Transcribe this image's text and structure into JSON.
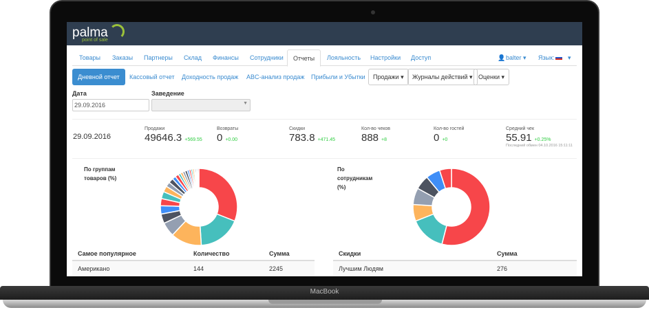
{
  "device_label": "MacBook",
  "app": {
    "logo": "palma",
    "logo_sub": "point of sale"
  },
  "nav": {
    "tabs": [
      "Товары",
      "Заказы",
      "Партнеры",
      "Склад",
      "Финансы",
      "Сотрудники",
      "Отчеты",
      "Лояльность",
      "Настройки",
      "Доступ"
    ],
    "active": "Отчеты",
    "user": "balter ▾",
    "language": "Язык:"
  },
  "subnav": {
    "items": [
      "Дневной отчет",
      "Кассовый отчет",
      "Доходность продаж",
      "ABC-анализ продаж",
      "Прибыли и Убытки"
    ],
    "active": "Дневной отчет",
    "dropdowns": [
      "Продажи ▾",
      "Журналы действий ▾",
      "Оценки ▾"
    ]
  },
  "filters": {
    "date_label": "Дата",
    "date_value": "29.09.2016",
    "venue_label": "Заведение",
    "venue_value": ""
  },
  "summary": {
    "date": "29.09.2016",
    "stats": [
      {
        "label": "Продажи",
        "value": "49646.3",
        "delta": "+569.55"
      },
      {
        "label": "Возвраты",
        "value": "0",
        "delta": "+0.00"
      },
      {
        "label": "Скидки",
        "value": "783.8",
        "delta": "+471.45"
      },
      {
        "label": "Кол-во чеков",
        "value": "888",
        "delta": "+8"
      },
      {
        "label": "Кол-во гостей",
        "value": "0",
        "delta": "+0"
      },
      {
        "label": "Средний чек",
        "value": "55.91",
        "delta": "+0.25%"
      }
    ],
    "last_sync": "Последний обмен 04.10.2016 15:11:11"
  },
  "chart_data": [
    {
      "type": "pie",
      "title": "По группам товаров (%)",
      "values": [
        31,
        18,
        13,
        6,
        4,
        3.5,
        3,
        3,
        2.5,
        2,
        2,
        1.5,
        1.5,
        1,
        1,
        1,
        1,
        0.8,
        0.8,
        0.7,
        0.7,
        0.5,
        0.5,
        0.5,
        0.5
      ],
      "colors": [
        "#f7464a",
        "#46bfbd",
        "#fdb45c",
        "#949fb1",
        "#4d5360",
        "#3f8ef7"
      ]
    },
    {
      "type": "pie",
      "title": "По сотрудникам (%)",
      "values": [
        54,
        15,
        7,
        7,
        6,
        6,
        5
      ],
      "colors": [
        "#f7464a",
        "#46bfbd",
        "#fdb45c",
        "#949fb1",
        "#4d5360",
        "#3f8ef7"
      ]
    }
  ],
  "tables": {
    "popular": {
      "headers": [
        "Самое популярное",
        "Количество",
        "Сумма"
      ],
      "rows": [
        [
          "Американо",
          "144",
          "2245"
        ]
      ]
    },
    "discounts": {
      "headers": [
        "Скидки",
        "Сумма"
      ],
      "rows": [
        [
          "Лучшим Людям",
          "276"
        ]
      ]
    }
  }
}
